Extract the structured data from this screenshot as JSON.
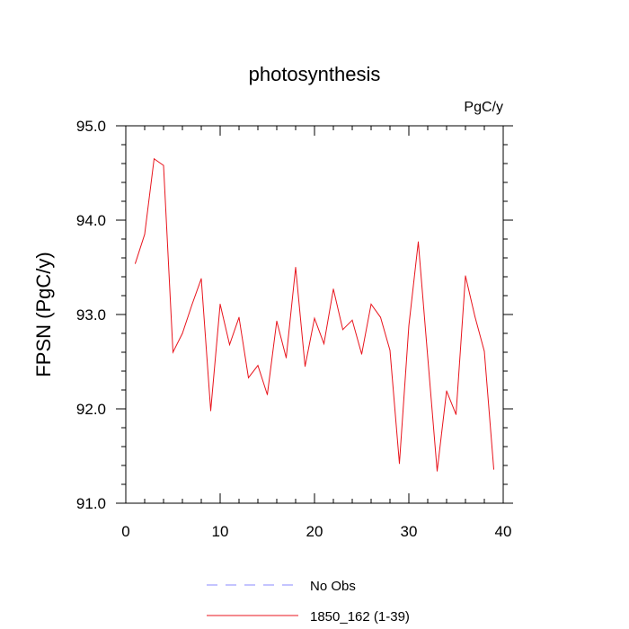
{
  "chart_data": {
    "type": "line",
    "title": "photosynthesis",
    "units_label": "PgC/y",
    "ylabel": "FPSN  (PgC/y)",
    "xlabel": "",
    "xlim": [
      0,
      40
    ],
    "ylim": [
      91.0,
      95.0
    ],
    "x_ticks": [
      0,
      10,
      20,
      30,
      40
    ],
    "x_tick_labels": [
      "0",
      "10",
      "20",
      "30",
      "40"
    ],
    "y_ticks": [
      91.0,
      92.0,
      93.0,
      94.0,
      95.0
    ],
    "y_tick_labels": [
      "91.0",
      "92.0",
      "93.0",
      "94.0",
      "95.0"
    ],
    "grid": false,
    "legend_position": "bottom",
    "series": [
      {
        "name": "1850_162 (1-39)",
        "color": "#e8141c",
        "style": "solid",
        "x": [
          1,
          2,
          3,
          4,
          5,
          6,
          7,
          8,
          9,
          10,
          11,
          12,
          13,
          14,
          15,
          16,
          17,
          18,
          19,
          20,
          21,
          22,
          23,
          24,
          25,
          26,
          27,
          28,
          29,
          30,
          31,
          32,
          33,
          34,
          35,
          36,
          37,
          38,
          39
        ],
        "values": [
          93.54,
          93.85,
          94.65,
          94.58,
          92.6,
          92.8,
          93.1,
          93.38,
          91.98,
          93.11,
          92.68,
          92.97,
          92.33,
          92.46,
          92.15,
          92.93,
          92.54,
          93.5,
          92.45,
          92.96,
          92.69,
          93.27,
          92.84,
          92.94,
          92.58,
          93.11,
          92.97,
          92.62,
          91.42,
          92.88,
          93.77,
          92.55,
          91.34,
          92.19,
          91.94,
          93.41,
          92.98,
          92.61,
          91.36
        ]
      }
    ],
    "legend": [
      {
        "label": "No Obs",
        "color": "#8a8aff",
        "style": "dashed"
      },
      {
        "label": "1850_162 (1-39)",
        "color": "#e8141c",
        "style": "solid"
      }
    ]
  }
}
